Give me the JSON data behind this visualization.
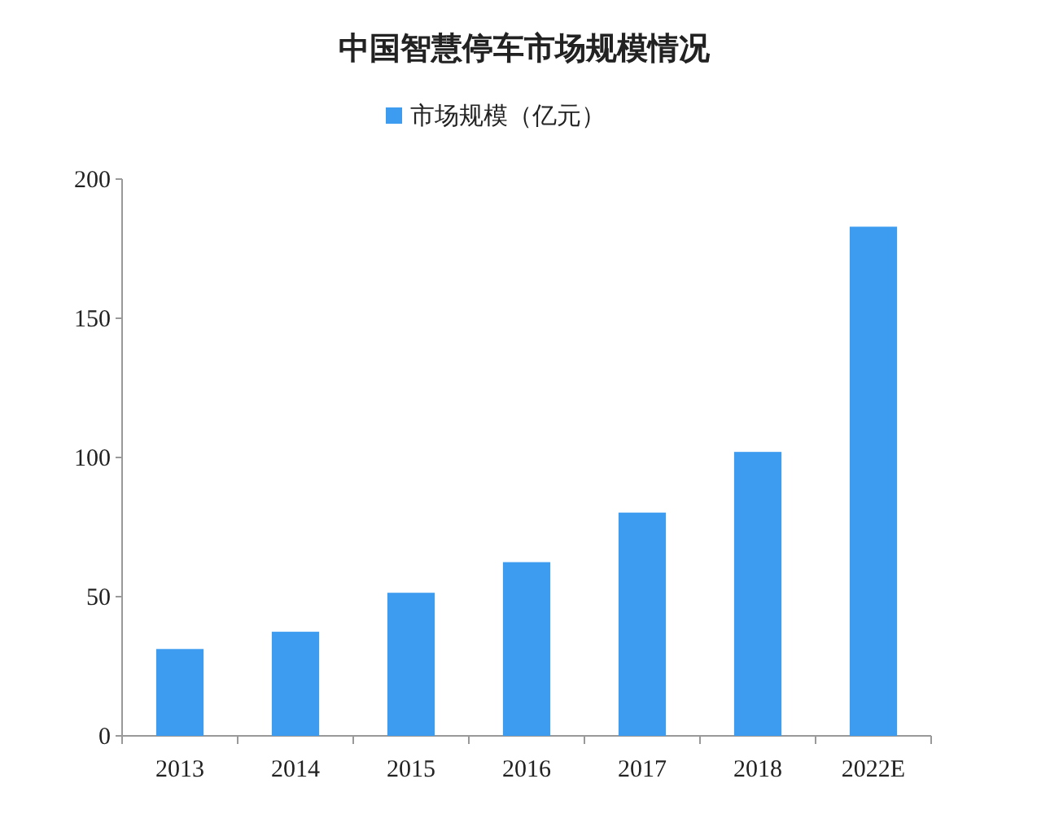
{
  "chart_data": {
    "type": "bar",
    "title": "中国智慧停车市场规模情况",
    "categories": [
      "2013",
      "2014",
      "2015",
      "2016",
      "2017",
      "2018",
      "2022E"
    ],
    "series": [
      {
        "name": "市场规模（亿元）",
        "color": "#3d9cf0",
        "values": [
          31.2,
          37.4,
          51.4,
          62.4,
          80.2,
          102,
          182.9
        ]
      }
    ],
    "ylim": [
      0,
      200
    ],
    "yticks": [
      0,
      50,
      100,
      150,
      200
    ],
    "grid": false,
    "legend": "top"
  }
}
